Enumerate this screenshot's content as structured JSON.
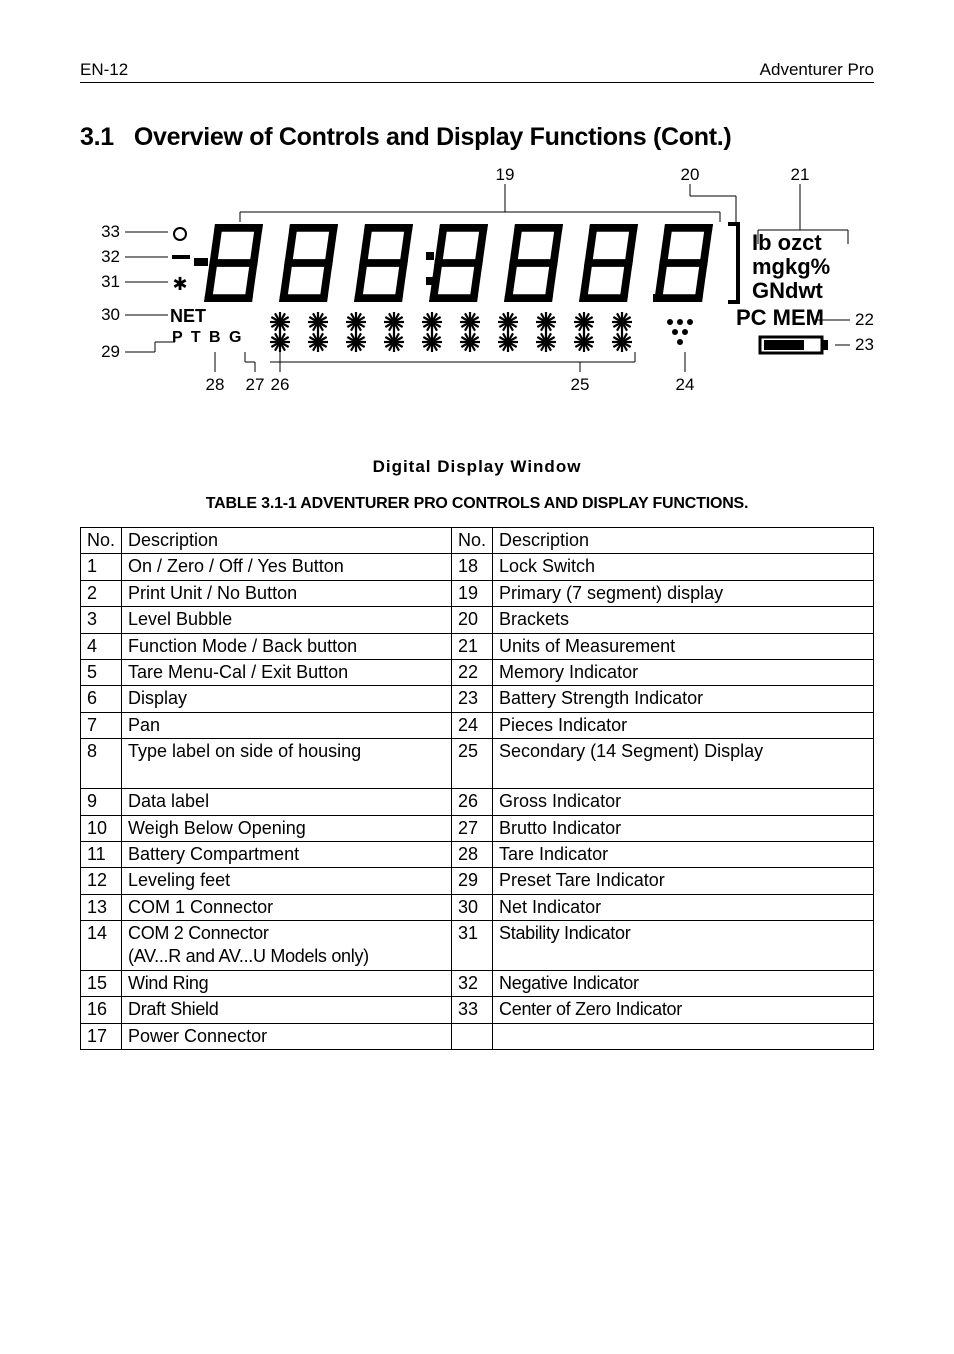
{
  "header": {
    "left": "EN-12",
    "right": "Adventurer Pro"
  },
  "section": {
    "number": "3.1",
    "title": "Overview of Controls and Display Functions (Cont.)"
  },
  "diagram": {
    "caption": "Digital Display Window",
    "callouts_top": [
      "19",
      "20",
      "21"
    ],
    "callouts_left": [
      "33",
      "32",
      "31",
      "30",
      "29"
    ],
    "callouts_right": [
      "22",
      "23"
    ],
    "callouts_bottom": [
      "28",
      "27",
      "26",
      "25",
      "24"
    ],
    "units_line1": "Ib ozct",
    "units_line2": "mgkg%",
    "units_line3": "GNdwt",
    "units_line4": "PC MEM",
    "net_label": "NET",
    "ptbg_label": "P T B G",
    "colors": {
      "stroke": "#000000",
      "fill_dark": "#000000",
      "bg": "#ffffff"
    }
  },
  "table": {
    "title": "TABLE 3.1-1 ADVENTURER PRO CONTROLS AND DISPLAY FUNCTIONS.",
    "header_left": [
      "No.",
      "Description"
    ],
    "header_right": [
      "No.",
      "Description"
    ],
    "rows": [
      {
        "l_no": "1",
        "l_desc": "On / Zero / Off / Yes Button",
        "r_no": "18",
        "r_desc": "Lock Switch"
      },
      {
        "l_no": "2",
        "l_desc": "Print Unit / No Button",
        "r_no": "19",
        "r_desc": "Primary (7 segment) display"
      },
      {
        "l_no": "3",
        "l_desc": "Level Bubble",
        "r_no": "20",
        "r_desc": "Brackets"
      },
      {
        "l_no": "4",
        "l_desc": "Function Mode / Back button",
        "r_no": "21",
        "r_desc": "Units of Measurement"
      },
      {
        "l_no": "5",
        "l_desc": "Tare Menu-Cal / Exit Button",
        "r_no": "22",
        "r_desc": "Memory Indicator"
      },
      {
        "l_no": "6",
        "l_desc": "Display",
        "r_no": "23",
        "r_desc": "Battery Strength Indicator"
      },
      {
        "l_no": "7",
        "l_desc": "Pan",
        "r_no": "24",
        "r_desc": "Pieces Indicator"
      },
      {
        "l_no": "8",
        "l_desc": "Type label on side of housing",
        "r_no": "25",
        "r_desc": "Secondary (14 Segment) Display",
        "tall": true
      },
      {
        "l_no": "9",
        "l_desc": "Data label",
        "r_no": "26",
        "r_desc": "Gross Indicator"
      },
      {
        "l_no": "10",
        "l_desc": "Weigh Below Opening",
        "r_no": "27",
        "r_desc": "Brutto Indicator"
      },
      {
        "l_no": "11",
        "l_desc": "Battery Compartment",
        "r_no": "28",
        "r_desc": "Tare Indicator"
      },
      {
        "l_no": "12",
        "l_desc": "Leveling feet",
        "r_no": "29",
        "r_desc": "Preset Tare Indicator"
      },
      {
        "l_no": "13",
        "l_desc": "COM 1 Connector",
        "r_no": "30",
        "r_desc": "Net Indicator"
      },
      {
        "l_no": "14",
        "l_desc": "COM 2 Connector<br>(AV...R and AV...U Models only)",
        "r_no": "31",
        "r_desc": "Stability Indicator",
        "narrow": true
      },
      {
        "l_no": "15",
        "l_desc": "Wind Ring",
        "r_no": "32",
        "r_desc": "Negative Indicator",
        "narrow": true
      },
      {
        "l_no": "16",
        "l_desc": "Draft Shield",
        "r_no": "33",
        "r_desc": "Center of Zero Indicator",
        "narrow": true
      },
      {
        "l_no": "17",
        "l_desc": "Power Connector",
        "r_no": "",
        "r_desc": ""
      }
    ]
  }
}
